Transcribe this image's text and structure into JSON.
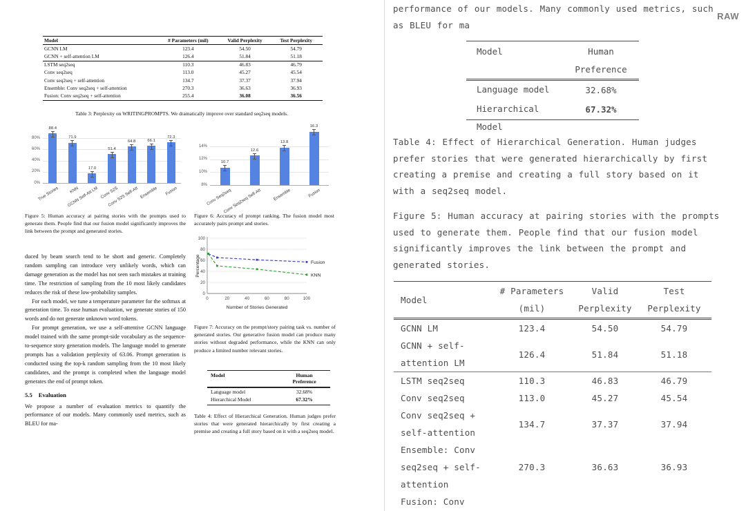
{
  "right_panel": {
    "raw_label": "RAW",
    "paragraph_top": "performance of our models. Many commonly used metrics, such as BLEU for ma",
    "preference_table": {
      "col1_header": "Model",
      "col2_header_line1": "Human",
      "col2_header_line2": "Preference",
      "rows": [
        {
          "model": "Language model",
          "value": "32.68%",
          "bold": false
        },
        {
          "model": "Hierarchical Model",
          "value": "67.32%",
          "bold": true
        }
      ]
    },
    "table4_caption": "Table 4: Effect of Hierarchical Generation. Human judges prefer stories that were generated hierarchically by first creating a premise and creating a full story based on it with a seq2seq model.",
    "figure5_caption": "Figure 5: Human accuracy at pairing stories with the prompts used to generate them. People find that our fusion model significantly improves the link between the prompt and generated stories.",
    "perplexity_table": {
      "headers": {
        "model": "Model",
        "params1": "# Parameters",
        "params2": "(mil)",
        "valid1": "Valid",
        "valid2": "Perplexity",
        "test1": "Test",
        "test2": "Perplexity"
      },
      "rows": [
        {
          "model": "GCNN LM",
          "params": "123.4",
          "valid": "54.50",
          "test": "54.79"
        },
        {
          "model": "GCNN + self-attention LM",
          "params": "126.4",
          "valid": "51.84",
          "test": "51.18",
          "rule_after": true
        },
        {
          "model": "LSTM seq2seq",
          "params": "110.3",
          "valid": "46.83",
          "test": "46.79"
        },
        {
          "model": "Conv seq2seq",
          "params": "113.0",
          "valid": "45.27",
          "test": "45.54"
        },
        {
          "model": "Conv seq2seq + self-attention",
          "params": "134.7",
          "valid": "37.37",
          "test": "37.94"
        },
        {
          "model": "Ensemble: Conv seq2seq + self-attention",
          "params": "270.3",
          "valid": "36.63",
          "test": "36.93"
        },
        {
          "model": "Fusion: Conv",
          "params": "",
          "valid": "",
          "test": ""
        }
      ]
    }
  },
  "paper": {
    "table3": {
      "headers": [
        "Model",
        "# Parameters (mil)",
        "Valid Perplexity",
        "Test Perplexity"
      ],
      "rows": [
        {
          "cells": [
            "GCNN LM",
            "123.4",
            "54.50",
            "54.79"
          ]
        },
        {
          "cells": [
            "GCNN + self-attention LM",
            "126.4",
            "51.84",
            "51.18"
          ],
          "rule_after": true
        },
        {
          "cells": [
            "LSTM seq2seq",
            "110.3",
            "46.83",
            "46.79"
          ]
        },
        {
          "cells": [
            "Conv seq2seq",
            "113.0",
            "45.27",
            "45.54"
          ]
        },
        {
          "cells": [
            "Conv seq2seq + self-attention",
            "134.7",
            "37.37",
            "37.94"
          ]
        },
        {
          "cells": [
            "Ensemble: Conv seq2seq + self-attention",
            "270.3",
            "36.63",
            "36.93"
          ]
        },
        {
          "cells": [
            "Fusion: Conv seq2seq + self-attention",
            "255.4",
            "36.08",
            "36.56"
          ],
          "bold_vals": true
        }
      ],
      "caption": "Table 3: Perplexity on WRITINGPROMPTS. We dramatically improve over standard seq2seq models."
    },
    "figure5_caption": "Figure 5: Human accuracy at pairing stories with the prompts used to generate them. People find that our fusion model significantly improves the link between the prompt and generated stories.",
    "figure6_caption": "Figure 6: Accuracy of prompt ranking. The fusion model most accurately pairs prompt and stories.",
    "figure7_caption": "Figure 7: Accuracy on the prompt/story pairing task vs. number of generated stories. Our generative fusion model can produce many stories without degraded performance, while the KNN can only produce a limited number relevant stories.",
    "body": {
      "p1": "duced by beam search tend to be short and generic. Completely random sampling can introduce very unlikely words, which can damage generation as the model has not seen such mistakes at training time. The restriction of sampling from the 10 most likely candidates reduces the risk of these low-probability samples.",
      "p2": "For each model, we tune a temperature parameter for the softmax at generation time. To ease human evaluation, we generate stories of 150 words and do not generate unknown word tokens.",
      "p3": "For prompt generation, we use a self-attentive GCNN language model trained with the same prompt-side vocabulary as the sequence-to-sequence story generation models. The language model to generate prompts has a validation perplexity of 63.06. Prompt generation is conducted using the top-k random sampling from the 10 most likely candidates, and the prompt is completed when the language model generates the end of prompt token.",
      "heading_num": "5.5",
      "heading_text": "Evaluation",
      "p4": "We propose a number of evaluation metrics to quantify the performance of our models. Many commonly used metrics, such as BLEU for ma-"
    },
    "table4": {
      "col1_header": "Model",
      "col2_header_line1": "Human",
      "col2_header_line2": "Preference",
      "rows": [
        {
          "model": "Language model",
          "value": "32.68%",
          "bold": false
        },
        {
          "model": "Hierarchical Model",
          "value": "67.32%",
          "bold": true
        }
      ]
    },
    "table4_caption": "Table 4: Effect of Hierarchical Generation. Human judges prefer stories that were generated hierarchically by first creating a premise and creating a full story based on it with a seq2seq model."
  },
  "chart_data": [
    {
      "id": "figure5",
      "type": "bar",
      "categories": [
        "True Stories",
        "KNN",
        "GCNN Self-Att LM",
        "Conv S2S",
        "Conv S2S Self-Att",
        "Ensemble",
        "Fusion"
      ],
      "values": [
        88.4,
        71.9,
        17.0,
        51.4,
        64.8,
        66.1,
        72.3
      ],
      "value_labels": [
        "88.4",
        "71.9",
        "17.0",
        "51.4",
        "64.8",
        "66.1",
        "72.3"
      ],
      "title": "",
      "xlabel": "",
      "ylabel": "",
      "ylim": [
        0,
        95
      ],
      "yticks": [
        0,
        20,
        40,
        60,
        80
      ],
      "ytick_labels": [
        "0%",
        "20%",
        "40%",
        "60%",
        "80%"
      ],
      "grid": true,
      "error_bars": true,
      "bar_color": "#5583e2"
    },
    {
      "id": "figure6",
      "type": "bar",
      "categories": [
        "Conv Seq2seq",
        "Conv Seq2seq Self-Att",
        "Ensemble",
        "Fusion"
      ],
      "values": [
        10.7,
        12.6,
        13.8,
        16.3
      ],
      "value_labels": [
        "10.7",
        "12.6",
        "13.8",
        "16.3"
      ],
      "title": "",
      "xlabel": "",
      "ylabel": "",
      "ylim": [
        8,
        17
      ],
      "yticks": [
        8,
        10,
        12,
        14
      ],
      "ytick_labels": [
        "8%",
        "10%",
        "12%",
        "14%"
      ],
      "grid": true,
      "error_bars": true,
      "bar_color": "#5583e2"
    },
    {
      "id": "figure7",
      "type": "line",
      "x": [
        1,
        10,
        50,
        100
      ],
      "series": [
        {
          "name": "Fusion",
          "values": [
            72,
            65,
            61,
            57
          ],
          "color": "#3a3abd",
          "dashed": true
        },
        {
          "name": "KNN",
          "values": [
            72,
            50,
            44,
            34
          ],
          "color": "#2f9e2f",
          "dashed": true
        }
      ],
      "xlabel": "Number of Stories Generated",
      "ylabel": "Percentage",
      "xlim": [
        0,
        100
      ],
      "ylim": [
        0,
        100
      ],
      "xticks": [
        0,
        20,
        40,
        60,
        80,
        100
      ],
      "yticks": [
        0,
        20,
        40,
        60,
        80,
        100
      ],
      "grid": true,
      "legend_position": "right"
    }
  ]
}
